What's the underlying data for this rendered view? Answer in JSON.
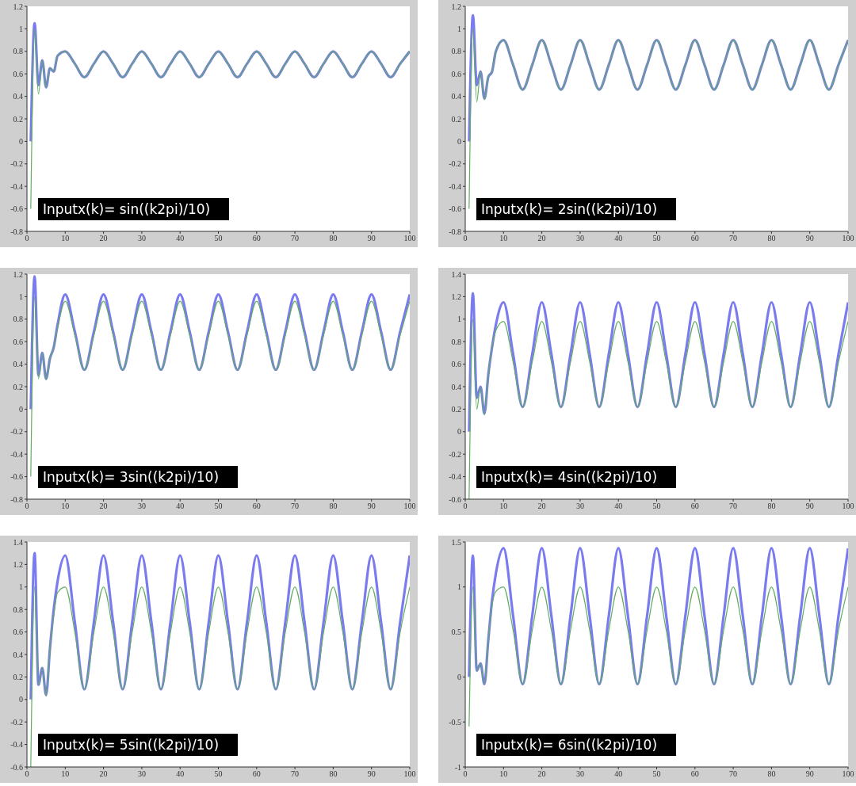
{
  "chart_data": [
    {
      "type": "line",
      "annotations": [
        "Inputx(k)= sin((k2pi)/10)"
      ],
      "x": [
        1,
        2,
        3,
        4,
        5,
        6,
        7,
        8,
        10,
        12.5,
        15,
        17.5,
        20,
        22.5,
        25,
        27.5,
        30,
        32.5,
        35,
        37.5,
        40,
        42.5,
        45,
        47.5,
        50,
        52.5,
        55,
        57.5,
        60,
        62.5,
        65,
        67.5,
        70,
        72.5,
        75,
        77.5,
        80,
        82.5,
        85,
        87.5,
        90,
        92.5,
        95,
        97.5,
        100
      ],
      "xlim": [
        0,
        100
      ],
      "xticks": [
        0,
        10,
        20,
        30,
        40,
        50,
        60,
        70,
        80,
        90,
        100
      ],
      "ylim": [
        -0.8,
        1.2
      ],
      "yticks": [
        -0.8,
        -0.6,
        -0.4,
        -0.2,
        0,
        0.2,
        0.4,
        0.6,
        0.8,
        1,
        1.2
      ],
      "grid": false,
      "legend": false,
      "series": [
        {
          "color": "#7b7bf0",
          "values": [
            0,
            1.05,
            0.5,
            0.72,
            0.48,
            0.65,
            0.62,
            0.76,
            0.8,
            0.69,
            0.57,
            0.69,
            0.8,
            0.69,
            0.57,
            0.69,
            0.8,
            0.69,
            0.57,
            0.69,
            0.8,
            0.69,
            0.57,
            0.69,
            0.8,
            0.69,
            0.57,
            0.69,
            0.8,
            0.69,
            0.57,
            0.69,
            0.8,
            0.69,
            0.57,
            0.69,
            0.8,
            0.69,
            0.57,
            0.69,
            0.8,
            0.69,
            0.57,
            0.69,
            0.8
          ]
        },
        {
          "color": "#5fae5f",
          "values": [
            -0.6,
            1.0,
            0.42,
            0.72,
            0.48,
            0.65,
            0.62,
            0.76,
            0.8,
            0.69,
            0.57,
            0.69,
            0.8,
            0.69,
            0.57,
            0.69,
            0.8,
            0.69,
            0.57,
            0.69,
            0.8,
            0.69,
            0.57,
            0.69,
            0.8,
            0.69,
            0.57,
            0.69,
            0.8,
            0.69,
            0.57,
            0.69,
            0.8,
            0.69,
            0.57,
            0.69,
            0.8,
            0.69,
            0.57,
            0.69,
            0.8,
            0.69,
            0.57,
            0.69,
            0.8
          ]
        }
      ]
    },
    {
      "type": "line",
      "annotations": [
        "Inputx(k)= 2sin((k2pi)/10)"
      ],
      "x": [
        1,
        2,
        3,
        4,
        5,
        6,
        7,
        8,
        10,
        12.5,
        15,
        17.5,
        20,
        22.5,
        25,
        27.5,
        30,
        32.5,
        35,
        37.5,
        40,
        42.5,
        45,
        47.5,
        50,
        52.5,
        55,
        57.5,
        60,
        62.5,
        65,
        67.5,
        70,
        72.5,
        75,
        77.5,
        80,
        82.5,
        85,
        87.5,
        90,
        92.5,
        95,
        97.5,
        100
      ],
      "xlim": [
        0,
        100
      ],
      "xticks": [
        0,
        10,
        20,
        30,
        40,
        50,
        60,
        70,
        80,
        90,
        100
      ],
      "ylim": [
        -0.8,
        1.2
      ],
      "yticks": [
        -0.8,
        -0.6,
        -0.4,
        -0.2,
        0,
        0.2,
        0.4,
        0.6,
        0.8,
        1,
        1.2
      ],
      "grid": false,
      "legend": false,
      "series": [
        {
          "color": "#7b7bf0",
          "values": [
            0,
            1.12,
            0.5,
            0.62,
            0.38,
            0.57,
            0.62,
            0.8,
            0.9,
            0.68,
            0.46,
            0.68,
            0.9,
            0.68,
            0.46,
            0.68,
            0.9,
            0.68,
            0.46,
            0.68,
            0.9,
            0.68,
            0.46,
            0.68,
            0.9,
            0.68,
            0.46,
            0.68,
            0.9,
            0.68,
            0.46,
            0.68,
            0.9,
            0.68,
            0.46,
            0.68,
            0.9,
            0.68,
            0.46,
            0.68,
            0.9,
            0.68,
            0.46,
            0.68,
            0.9
          ]
        },
        {
          "color": "#5fae5f",
          "values": [
            -0.6,
            1.0,
            0.35,
            0.62,
            0.37,
            0.57,
            0.62,
            0.8,
            0.9,
            0.68,
            0.46,
            0.68,
            0.9,
            0.68,
            0.46,
            0.68,
            0.9,
            0.68,
            0.46,
            0.68,
            0.9,
            0.68,
            0.46,
            0.68,
            0.9,
            0.68,
            0.46,
            0.68,
            0.9,
            0.68,
            0.46,
            0.68,
            0.9,
            0.68,
            0.46,
            0.68,
            0.9,
            0.68,
            0.46,
            0.68,
            0.9,
            0.68,
            0.46,
            0.68,
            0.9
          ]
        }
      ]
    },
    {
      "type": "line",
      "annotations": [
        "Inputx(k)= 3sin((k2pi)/10)"
      ],
      "x": [
        1,
        2,
        3,
        4,
        5,
        6,
        7,
        8,
        10,
        12.5,
        15,
        17.5,
        20,
        22.5,
        25,
        27.5,
        30,
        32.5,
        35,
        37.5,
        40,
        42.5,
        45,
        47.5,
        50,
        52.5,
        55,
        57.5,
        60,
        62.5,
        65,
        67.5,
        70,
        72.5,
        75,
        77.5,
        80,
        82.5,
        85,
        87.5,
        90,
        92.5,
        95,
        97.5,
        100
      ],
      "xlim": [
        0,
        100
      ],
      "xticks": [
        0,
        10,
        20,
        30,
        40,
        50,
        60,
        70,
        80,
        90,
        100
      ],
      "ylim": [
        -0.8,
        1.2
      ],
      "yticks": [
        -0.8,
        -0.6,
        -0.4,
        -0.2,
        0,
        0.2,
        0.4,
        0.6,
        0.8,
        1,
        1.2
      ],
      "grid": false,
      "legend": false,
      "series": [
        {
          "color": "#7b7bf0",
          "values": [
            0,
            1.18,
            0.3,
            0.5,
            0.27,
            0.45,
            0.55,
            0.75,
            1.02,
            0.69,
            0.35,
            0.69,
            1.02,
            0.69,
            0.35,
            0.69,
            1.02,
            0.69,
            0.35,
            0.69,
            1.02,
            0.69,
            0.35,
            0.69,
            1.02,
            0.69,
            0.35,
            0.69,
            1.02,
            0.69,
            0.35,
            0.69,
            1.02,
            0.69,
            0.35,
            0.69,
            1.02,
            0.69,
            0.35,
            0.69,
            1.02,
            0.69,
            0.35,
            0.69,
            1.02
          ]
        },
        {
          "color": "#5fae5f",
          "values": [
            -0.6,
            1.0,
            0.27,
            0.5,
            0.26,
            0.45,
            0.55,
            0.72,
            0.96,
            0.66,
            0.35,
            0.66,
            0.96,
            0.66,
            0.35,
            0.66,
            0.96,
            0.66,
            0.35,
            0.66,
            0.96,
            0.66,
            0.35,
            0.66,
            0.96,
            0.66,
            0.35,
            0.66,
            0.96,
            0.66,
            0.35,
            0.66,
            0.96,
            0.66,
            0.35,
            0.66,
            0.96,
            0.66,
            0.35,
            0.66,
            0.96,
            0.66,
            0.35,
            0.66,
            0.96
          ]
        }
      ]
    },
    {
      "type": "line",
      "annotations": [
        "Inputx(k)= 4sin((k2pi)/10)"
      ],
      "x": [
        1,
        2,
        3,
        4,
        5,
        6,
        7,
        8,
        10,
        12.5,
        15,
        17.5,
        20,
        22.5,
        25,
        27.5,
        30,
        32.5,
        35,
        37.5,
        40,
        42.5,
        45,
        47.5,
        50,
        52.5,
        55,
        57.5,
        60,
        62.5,
        65,
        67.5,
        70,
        72.5,
        75,
        77.5,
        80,
        82.5,
        85,
        87.5,
        90,
        92.5,
        95,
        97.5,
        100
      ],
      "xlim": [
        0,
        100
      ],
      "xticks": [
        0,
        10,
        20,
        30,
        40,
        50,
        60,
        70,
        80,
        90,
        100
      ],
      "ylim": [
        -0.6,
        1.4
      ],
      "yticks": [
        -0.6,
        -0.4,
        -0.2,
        0,
        0.2,
        0.4,
        0.6,
        0.8,
        1,
        1.2,
        1.4
      ],
      "grid": false,
      "legend": false,
      "series": [
        {
          "color": "#7b7bf0",
          "values": [
            0,
            1.23,
            0.3,
            0.4,
            0.16,
            0.5,
            0.75,
            0.95,
            1.15,
            0.69,
            0.22,
            0.69,
            1.15,
            0.69,
            0.22,
            0.69,
            1.15,
            0.69,
            0.22,
            0.69,
            1.15,
            0.69,
            0.22,
            0.69,
            1.15,
            0.69,
            0.22,
            0.69,
            1.15,
            0.69,
            0.22,
            0.69,
            1.15,
            0.69,
            0.22,
            0.69,
            1.15,
            0.69,
            0.22,
            0.69,
            1.15,
            0.69,
            0.22,
            0.69,
            1.15
          ]
        },
        {
          "color": "#5fae5f",
          "values": [
            -0.6,
            1.0,
            0.2,
            0.4,
            0.15,
            0.5,
            0.75,
            0.9,
            0.98,
            0.62,
            0.22,
            0.62,
            0.98,
            0.62,
            0.22,
            0.62,
            0.98,
            0.62,
            0.22,
            0.62,
            0.98,
            0.62,
            0.22,
            0.62,
            0.98,
            0.62,
            0.22,
            0.62,
            0.98,
            0.62,
            0.22,
            0.62,
            0.98,
            0.62,
            0.22,
            0.62,
            0.98,
            0.62,
            0.22,
            0.62,
            0.98,
            0.62,
            0.22,
            0.62,
            0.98
          ]
        }
      ]
    },
    {
      "type": "line",
      "annotations": [
        "Inputx(k)= 5sin((k2pi)/10)"
      ],
      "x": [
        1,
        2,
        3,
        4,
        5,
        6,
        7,
        8,
        10,
        12.5,
        15,
        17.5,
        20,
        22.5,
        25,
        27.5,
        30,
        32.5,
        35,
        37.5,
        40,
        42.5,
        45,
        47.5,
        50,
        52.5,
        55,
        57.5,
        60,
        62.5,
        65,
        67.5,
        70,
        72.5,
        75,
        77.5,
        80,
        82.5,
        85,
        87.5,
        90,
        92.5,
        95,
        97.5,
        100
      ],
      "xlim": [
        0,
        100
      ],
      "xticks": [
        0,
        10,
        20,
        30,
        40,
        50,
        60,
        70,
        80,
        90,
        100
      ],
      "ylim": [
        -0.6,
        1.4
      ],
      "yticks": [
        -0.6,
        -0.4,
        -0.2,
        0,
        0.2,
        0.4,
        0.6,
        0.8,
        1,
        1.2,
        1.4
      ],
      "grid": false,
      "legend": false,
      "series": [
        {
          "color": "#7b7bf0",
          "values": [
            0,
            1.3,
            0.13,
            0.28,
            0.04,
            0.45,
            0.8,
            1.05,
            1.28,
            0.69,
            0.09,
            0.69,
            1.28,
            0.69,
            0.09,
            0.69,
            1.28,
            0.69,
            0.09,
            0.69,
            1.28,
            0.69,
            0.09,
            0.69,
            1.28,
            0.69,
            0.09,
            0.69,
            1.28,
            0.69,
            0.09,
            0.69,
            1.28,
            0.69,
            0.09,
            0.69,
            1.28,
            0.69,
            0.09,
            0.69,
            1.28,
            0.69,
            0.09,
            0.69,
            1.28
          ]
        },
        {
          "color": "#5fae5f",
          "values": [
            -0.6,
            1.0,
            0.13,
            0.28,
            0.03,
            0.45,
            0.75,
            0.95,
            1.0,
            0.6,
            0.09,
            0.6,
            1.0,
            0.6,
            0.09,
            0.6,
            1.0,
            0.6,
            0.09,
            0.6,
            1.0,
            0.6,
            0.09,
            0.6,
            1.0,
            0.6,
            0.09,
            0.6,
            1.0,
            0.6,
            0.09,
            0.6,
            1.0,
            0.6,
            0.09,
            0.6,
            1.0,
            0.6,
            0.09,
            0.6,
            1.0,
            0.6,
            0.09,
            0.6,
            1.0
          ]
        }
      ]
    },
    {
      "type": "line",
      "annotations": [
        "Inputx(k)= 6sin((k2pi)/10)"
      ],
      "x": [
        1,
        2,
        3,
        4,
        5,
        6,
        7,
        8,
        10,
        12.5,
        15,
        17.5,
        20,
        22.5,
        25,
        27.5,
        30,
        32.5,
        35,
        37.5,
        40,
        42.5,
        45,
        47.5,
        50,
        52.5,
        55,
        57.5,
        60,
        62.5,
        65,
        67.5,
        70,
        72.5,
        75,
        77.5,
        80,
        82.5,
        85,
        87.5,
        90,
        92.5,
        95,
        97.5,
        100
      ],
      "xlim": [
        0,
        100
      ],
      "xticks": [
        0,
        10,
        20,
        30,
        40,
        50,
        60,
        70,
        80,
        90,
        100
      ],
      "ylim": [
        -1,
        1.5
      ],
      "yticks": [
        -1,
        -0.5,
        0,
        0.5,
        1,
        1.5
      ],
      "grid": false,
      "legend": false,
      "series": [
        {
          "color": "#7b7bf0",
          "values": [
            0,
            1.35,
            0.07,
            0.15,
            -0.08,
            0.4,
            0.85,
            1.15,
            1.43,
            0.68,
            -0.08,
            0.68,
            1.43,
            0.68,
            -0.08,
            0.68,
            1.43,
            0.68,
            -0.08,
            0.68,
            1.43,
            0.68,
            -0.08,
            0.68,
            1.43,
            0.68,
            -0.08,
            0.68,
            1.43,
            0.68,
            -0.08,
            0.68,
            1.43,
            0.68,
            -0.08,
            0.68,
            1.43,
            0.68,
            -0.08,
            0.68,
            1.43,
            0.68,
            -0.08,
            0.68,
            1.43
          ]
        },
        {
          "color": "#5fae5f",
          "values": [
            -0.55,
            1.0,
            0.07,
            0.15,
            -0.08,
            0.4,
            0.8,
            0.95,
            1.0,
            0.52,
            -0.08,
            0.52,
            1.0,
            0.52,
            -0.08,
            0.52,
            1.0,
            0.52,
            -0.08,
            0.52,
            1.0,
            0.52,
            -0.08,
            0.52,
            1.0,
            0.52,
            -0.08,
            0.52,
            1.0,
            0.52,
            -0.08,
            0.52,
            1.0,
            0.52,
            -0.08,
            0.52,
            1.0,
            0.52,
            -0.08,
            0.52,
            1.0,
            0.52,
            -0.08,
            0.52,
            1.0
          ]
        }
      ]
    }
  ]
}
